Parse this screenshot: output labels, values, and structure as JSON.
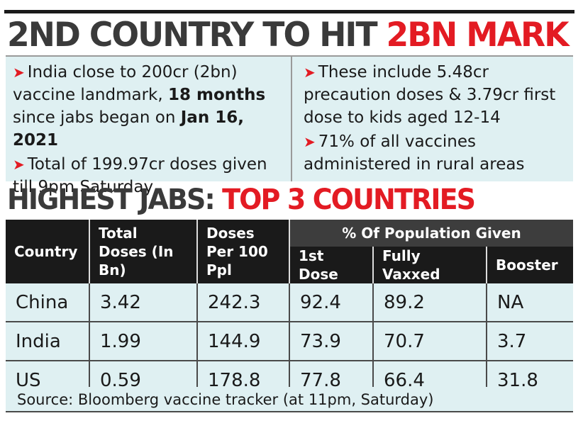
{
  "title": {
    "part1": "2ND COUNTRY TO HIT ",
    "part2": "2BN MARK"
  },
  "bullets_left": [
    {
      "pre": "India close to 200cr (2bn) vaccine landmark, ",
      "bold1": "18 months",
      "mid": " since jabs began on ",
      "bold2": "Jan 16, 2021"
    },
    {
      "text": "Total of 199.97cr doses given till 9pm Saturday"
    }
  ],
  "bullets_right": [
    {
      "text": "These include 5.48cr precaution doses & 3.79cr first dose to kids aged 12-14"
    },
    {
      "text": "71% of all vaccines administered in rural areas"
    }
  ],
  "arrow_glyph": "➤",
  "subtitle": {
    "part1": "HIGHEST JABS: ",
    "part2": "TOP 3 COUNTRIES"
  },
  "table": {
    "headers": {
      "country": "Country",
      "total_doses": "Total Doses (In Bn)",
      "doses_per_100": "Doses Per 100 Ppl",
      "group": "% Of Population Given",
      "first_dose": "1st Dose",
      "fully_vaxxed": "Fully Vaxxed",
      "booster": "Booster"
    },
    "rows": [
      {
        "country": "China",
        "total": "3.42",
        "per100": "242.3",
        "first": "92.4",
        "full": "89.2",
        "booster": "NA"
      },
      {
        "country": "India",
        "total": "1.99",
        "per100": "144.9",
        "first": "73.9",
        "full": "70.7",
        "booster": "3.7"
      },
      {
        "country": "US",
        "total": "0.59",
        "per100": "178.8",
        "first": "77.8",
        "full": "66.4",
        "booster": "31.8"
      }
    ]
  },
  "source": "Source: Bloomberg vaccine tracker (at 11pm, Saturday)",
  "colors": {
    "red": "#e31b23",
    "panel": "#dff0f2",
    "header": "#1a1a1a"
  }
}
